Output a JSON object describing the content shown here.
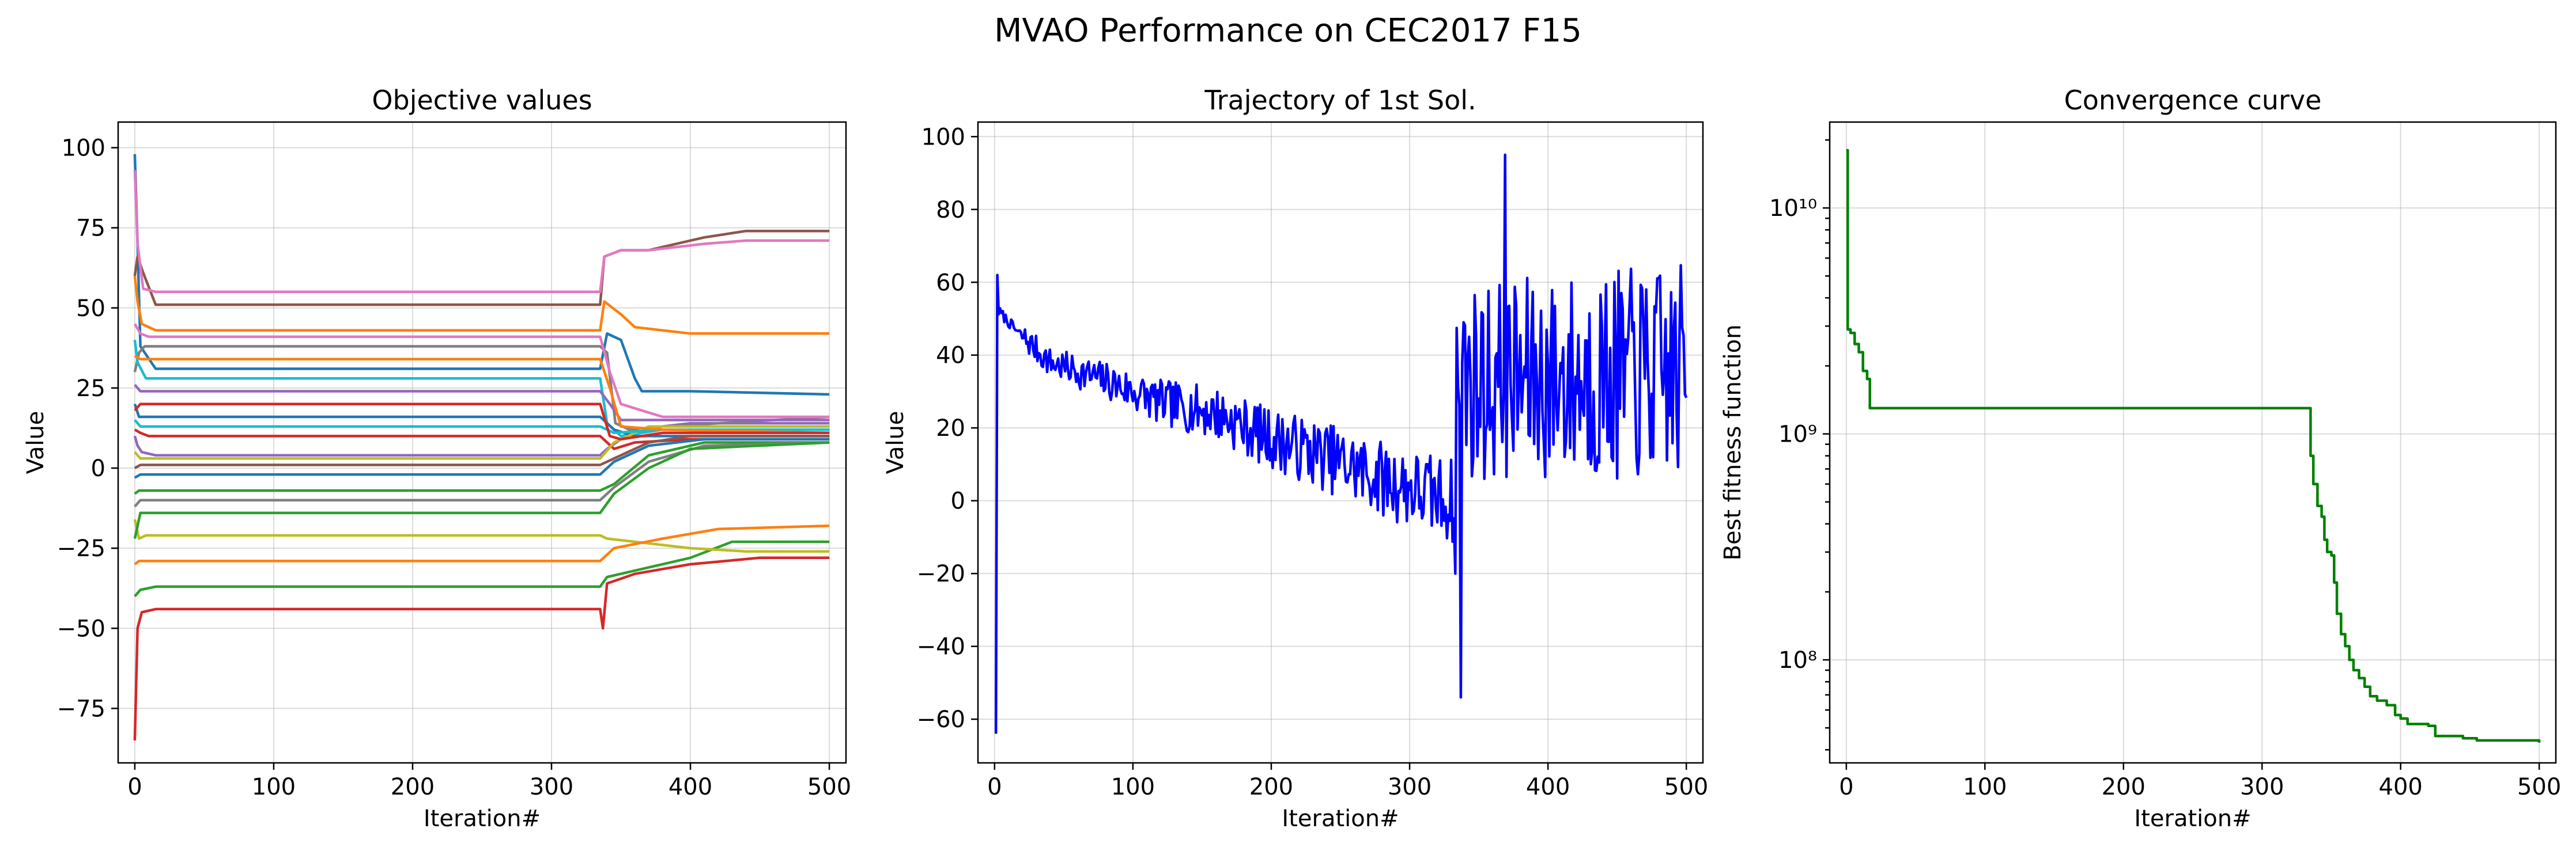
{
  "figure": {
    "title": "MVAO Performance on CEC2017 F15"
  },
  "chart_data": [
    {
      "type": "line",
      "title": "Objective values",
      "xlabel": "Iteration#",
      "ylabel": "Value",
      "xlim": [
        -12,
        512
      ],
      "ylim": [
        -92,
        108
      ],
      "xticks": [
        0,
        100,
        200,
        300,
        400,
        500
      ],
      "yticks": [
        -75,
        -50,
        -25,
        0,
        25,
        50,
        75,
        100
      ],
      "grid": true,
      "colors": [
        "#1f77b4",
        "#ff7f0e",
        "#2ca02c",
        "#d62728",
        "#9467bd",
        "#8c564b",
        "#e377c2",
        "#7f7f7f",
        "#bcbd22",
        "#17becf"
      ],
      "series": [
        {
          "values": [
            [
              0,
              98
            ],
            [
              2,
              70
            ],
            [
              4,
              38
            ],
            [
              15,
              31
            ],
            [
              335,
              31
            ],
            [
              340,
              42
            ],
            [
              350,
              40
            ],
            [
              360,
              28
            ],
            [
              365,
              24
            ],
            [
              400,
              24
            ],
            [
              500,
              23
            ]
          ]
        },
        {
          "values": [
            [
              0,
              60
            ],
            [
              2,
              52
            ],
            [
              5,
              45
            ],
            [
              15,
              43
            ],
            [
              335,
              43
            ],
            [
              338,
              52
            ],
            [
              350,
              48
            ],
            [
              360,
              44
            ],
            [
              400,
              42
            ],
            [
              500,
              42
            ]
          ]
        },
        {
          "values": [
            [
              0,
              -40
            ],
            [
              4,
              -38
            ],
            [
              15,
              -37
            ],
            [
              335,
              -37
            ],
            [
              340,
              -34
            ],
            [
              360,
              -32
            ],
            [
              400,
              -28
            ],
            [
              430,
              -23
            ],
            [
              500,
              -23
            ]
          ]
        },
        {
          "values": [
            [
              0,
              -85
            ],
            [
              2,
              -50
            ],
            [
              5,
              -45
            ],
            [
              15,
              -44
            ],
            [
              335,
              -44
            ],
            [
              337,
              -50
            ],
            [
              340,
              -36
            ],
            [
              360,
              -33
            ],
            [
              400,
              -30
            ],
            [
              450,
              -28
            ],
            [
              500,
              -28
            ]
          ]
        },
        {
          "values": [
            [
              0,
              10
            ],
            [
              2,
              7
            ],
            [
              5,
              5
            ],
            [
              15,
              4
            ],
            [
              335,
              4
            ],
            [
              340,
              6
            ],
            [
              360,
              12
            ],
            [
              400,
              14
            ],
            [
              500,
              14
            ]
          ]
        },
        {
          "values": [
            [
              0,
              60
            ],
            [
              2,
              66
            ],
            [
              6,
              61
            ],
            [
              15,
              51
            ],
            [
              335,
              51
            ],
            [
              338,
              66
            ],
            [
              350,
              68
            ],
            [
              370,
              68
            ],
            [
              410,
              72
            ],
            [
              440,
              74
            ],
            [
              500,
              74
            ]
          ]
        },
        {
          "values": [
            [
              0,
              93
            ],
            [
              2,
              70
            ],
            [
              6,
              56
            ],
            [
              15,
              55
            ],
            [
              335,
              55
            ],
            [
              338,
              66
            ],
            [
              350,
              68
            ],
            [
              370,
              68
            ],
            [
              410,
              70
            ],
            [
              440,
              71
            ],
            [
              500,
              71
            ]
          ]
        },
        {
          "values": [
            [
              0,
              30
            ],
            [
              3,
              36
            ],
            [
              7,
              38
            ],
            [
              15,
              38
            ],
            [
              335,
              38
            ],
            [
              340,
              36
            ],
            [
              346,
              14
            ],
            [
              356,
              12
            ],
            [
              380,
              13
            ],
            [
              500,
              16
            ]
          ]
        },
        {
          "values": [
            [
              0,
              -16
            ],
            [
              3,
              -22
            ],
            [
              8,
              -21
            ],
            [
              15,
              -21
            ],
            [
              335,
              -21
            ],
            [
              340,
              -22
            ],
            [
              360,
              -23
            ],
            [
              400,
              -25
            ],
            [
              440,
              -26
            ],
            [
              500,
              -26
            ]
          ]
        },
        {
          "values": [
            [
              0,
              40
            ],
            [
              2,
              33
            ],
            [
              8,
              28
            ],
            [
              15,
              28
            ],
            [
              335,
              28
            ],
            [
              340,
              14
            ],
            [
              350,
              10
            ],
            [
              380,
              12
            ],
            [
              500,
              12
            ]
          ]
        },
        {
          "values": [
            [
              0,
              20
            ],
            [
              3,
              16
            ],
            [
              10,
              16
            ],
            [
              335,
              16
            ],
            [
              345,
              12
            ],
            [
              360,
              10
            ],
            [
              400,
              10
            ],
            [
              500,
              10
            ]
          ]
        },
        {
          "values": [
            [
              0,
              -30
            ],
            [
              3,
              -29
            ],
            [
              12,
              -29
            ],
            [
              335,
              -29
            ],
            [
              345,
              -25
            ],
            [
              380,
              -22
            ],
            [
              420,
              -19
            ],
            [
              500,
              -18
            ]
          ]
        },
        {
          "values": [
            [
              0,
              -8
            ],
            [
              3,
              -7
            ],
            [
              10,
              -7
            ],
            [
              335,
              -7
            ],
            [
              345,
              -5
            ],
            [
              370,
              4
            ],
            [
              410,
              8
            ],
            [
              500,
              8
            ]
          ]
        },
        {
          "values": [
            [
              0,
              12
            ],
            [
              4,
              11
            ],
            [
              10,
              10
            ],
            [
              335,
              10
            ],
            [
              345,
              6
            ],
            [
              360,
              8
            ],
            [
              400,
              9
            ],
            [
              500,
              9
            ]
          ]
        },
        {
          "values": [
            [
              0,
              26
            ],
            [
              4,
              24
            ],
            [
              10,
              24
            ],
            [
              335,
              24
            ],
            [
              342,
              20
            ],
            [
              350,
              15
            ],
            [
              380,
              15
            ],
            [
              500,
              15
            ]
          ]
        },
        {
          "values": [
            [
              0,
              0
            ],
            [
              4,
              1
            ],
            [
              10,
              1
            ],
            [
              335,
              1
            ],
            [
              345,
              3
            ],
            [
              370,
              8
            ],
            [
              400,
              10
            ],
            [
              500,
              10
            ]
          ]
        },
        {
          "values": [
            [
              0,
              45
            ],
            [
              4,
              42
            ],
            [
              10,
              41
            ],
            [
              335,
              41
            ],
            [
              342,
              30
            ],
            [
              350,
              20
            ],
            [
              380,
              16
            ],
            [
              500,
              16
            ]
          ]
        },
        {
          "values": [
            [
              0,
              -12
            ],
            [
              4,
              -10
            ],
            [
              10,
              -10
            ],
            [
              335,
              -10
            ],
            [
              345,
              -6
            ],
            [
              370,
              2
            ],
            [
              410,
              7
            ],
            [
              500,
              8
            ]
          ]
        },
        {
          "values": [
            [
              0,
              5
            ],
            [
              4,
              3
            ],
            [
              10,
              3
            ],
            [
              335,
              3
            ],
            [
              345,
              8
            ],
            [
              370,
              13
            ],
            [
              500,
              13
            ]
          ]
        },
        {
          "values": [
            [
              0,
              15
            ],
            [
              4,
              13
            ],
            [
              10,
              13
            ],
            [
              335,
              13
            ],
            [
              345,
              11
            ],
            [
              380,
              12
            ],
            [
              500,
              12
            ]
          ]
        },
        {
          "values": [
            [
              0,
              -3
            ],
            [
              4,
              -2
            ],
            [
              10,
              -2
            ],
            [
              335,
              -2
            ],
            [
              345,
              2
            ],
            [
              370,
              7
            ],
            [
              410,
              9
            ],
            [
              500,
              9
            ]
          ]
        },
        {
          "values": [
            [
              0,
              35
            ],
            [
              4,
              34
            ],
            [
              10,
              34
            ],
            [
              335,
              34
            ],
            [
              342,
              25
            ],
            [
              350,
              13
            ],
            [
              380,
              12
            ],
            [
              500,
              11
            ]
          ]
        },
        {
          "values": [
            [
              0,
              -22
            ],
            [
              4,
              -14
            ],
            [
              10,
              -14
            ],
            [
              335,
              -14
            ],
            [
              345,
              -8
            ],
            [
              370,
              0
            ],
            [
              400,
              6
            ],
            [
              500,
              8
            ]
          ]
        },
        {
          "values": [
            [
              0,
              18
            ],
            [
              4,
              20
            ],
            [
              10,
              20
            ],
            [
              335,
              20
            ],
            [
              342,
              10
            ],
            [
              350,
              9
            ],
            [
              380,
              11
            ],
            [
              500,
              11
            ]
          ]
        }
      ]
    },
    {
      "type": "line",
      "title": "Trajectory of 1st Sol.",
      "xlabel": "Iteration#",
      "ylabel": "Value",
      "xlim": [
        -12,
        512
      ],
      "ylim": [
        -72,
        104
      ],
      "xticks": [
        0,
        100,
        200,
        300,
        400,
        500
      ],
      "yticks": [
        -60,
        -40,
        -20,
        0,
        20,
        40,
        60,
        80,
        100
      ],
      "grid": true,
      "color": "#0000ff",
      "anchors": [
        [
          1,
          -64
        ],
        [
          2,
          62
        ],
        [
          3,
          52
        ],
        [
          8,
          50
        ],
        [
          15,
          47
        ],
        [
          40,
          38
        ],
        [
          80,
          33
        ],
        [
          120,
          27
        ],
        [
          160,
          24
        ],
        [
          200,
          17
        ],
        [
          240,
          12
        ],
        [
          280,
          6
        ],
        [
          320,
          1
        ],
        [
          333,
          0
        ]
      ],
      "spikes": [
        [
          1,
          -64
        ],
        [
          2,
          62
        ],
        [
          333,
          -20
        ],
        [
          337,
          -54
        ],
        [
          339,
          49
        ],
        [
          369,
          95
        ]
      ],
      "late_range": [
        [
          340,
          5,
          60
        ],
        [
          500,
          5,
          65
        ]
      ],
      "seed": 7
    },
    {
      "type": "line",
      "title": "Convergence curve",
      "xlabel": "Iteration#",
      "ylabel": "Best fitness function",
      "xlim": [
        -12,
        512
      ],
      "ylim": [
        35000000.0,
        24000000000.0
      ],
      "yscale": "log",
      "xticks": [
        0,
        100,
        200,
        300,
        400,
        500
      ],
      "ytick_labels": [
        "10⁸",
        "10⁹",
        "10¹⁰"
      ],
      "grid": true,
      "color": "#008000",
      "values": [
        [
          0,
          18000000000.0
        ],
        [
          1,
          2900000000.0
        ],
        [
          3,
          2800000000.0
        ],
        [
          6,
          2500000000.0
        ],
        [
          9,
          2300000000.0
        ],
        [
          12,
          1900000000.0
        ],
        [
          15,
          1750000000.0
        ],
        [
          17,
          1300000000.0
        ],
        [
          333,
          1300000000.0
        ],
        [
          335,
          800000000.0
        ],
        [
          337,
          600000000.0
        ],
        [
          340,
          480000000.0
        ],
        [
          343,
          430000000.0
        ],
        [
          345,
          340000000.0
        ],
        [
          347,
          300000000.0
        ],
        [
          350,
          290000000.0
        ],
        [
          352,
          220000000.0
        ],
        [
          354,
          160000000.0
        ],
        [
          357,
          130000000.0
        ],
        [
          360,
          115000000.0
        ],
        [
          363,
          100000000.0
        ],
        [
          366,
          90000000.0
        ],
        [
          370,
          83000000.0
        ],
        [
          374,
          76000000.0
        ],
        [
          378,
          69000000.0
        ],
        [
          383,
          66000000.0
        ],
        [
          390,
          63000000.0
        ],
        [
          396,
          57000000.0
        ],
        [
          400,
          55000000.0
        ],
        [
          405,
          52000000.0
        ],
        [
          420,
          51000000.0
        ],
        [
          425,
          46000000.0
        ],
        [
          445,
          45000000.0
        ],
        [
          455,
          44000000.0
        ],
        [
          500,
          43000000.0
        ]
      ]
    }
  ]
}
